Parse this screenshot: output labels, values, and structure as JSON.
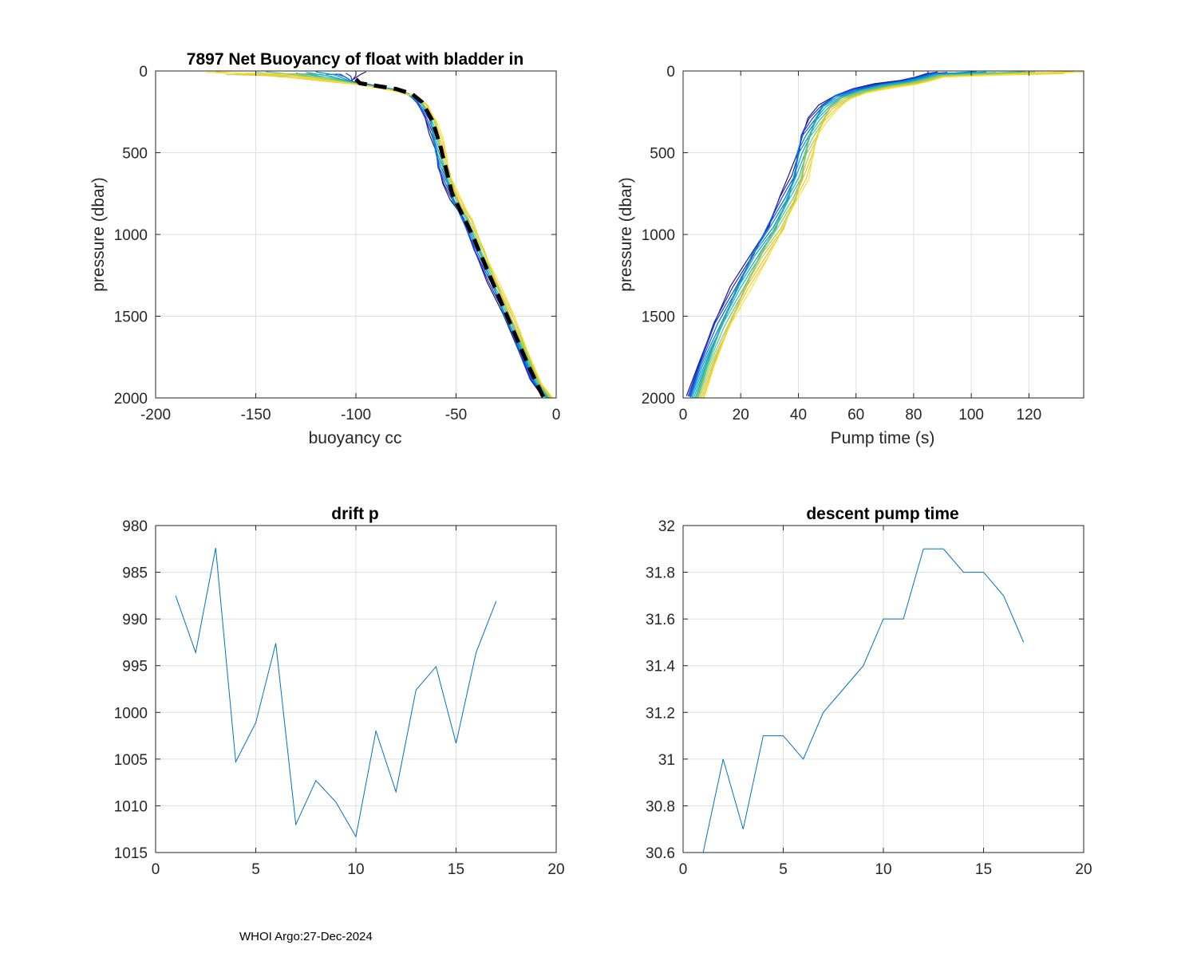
{
  "footer": "WHOI Argo:27-Dec-2024",
  "colors": {
    "axis": "#262626",
    "grid": "#dfdfdf",
    "series": "#0072bd",
    "model": "#000000"
  },
  "chart_data": [
    {
      "id": "buoyancy",
      "type": "line",
      "title": "7897 Net Buoyancy of float with bladder in",
      "xlabel": "buoyancy cc",
      "ylabel": "pressure (dbar)",
      "xlim": [
        -200,
        0
      ],
      "ylim": [
        0,
        2000
      ],
      "y_reversed": true,
      "xticks": [
        "-200",
        "-150",
        "-100",
        "-50",
        "0"
      ],
      "xtick_values": [
        -200,
        -150,
        -100,
        -50,
        0
      ],
      "yticks": [
        "0",
        "500",
        "1000",
        "1500",
        "2000"
      ],
      "ytick_values": [
        0,
        500,
        1000,
        1500,
        2000
      ],
      "series_base": {
        "x": [
          -100,
          -98,
          -90,
          -80,
          -72,
          -67,
          -62,
          -60,
          -58,
          -56,
          -53,
          -50,
          -45,
          -38,
          -31,
          -24,
          -17,
          -10,
          -4
        ],
        "y": [
          75,
          80,
          95,
          120,
          150,
          200,
          300,
          400,
          500,
          600,
          700,
          800,
          900,
          1100,
          1300,
          1500,
          1700,
          1900,
          2000
        ]
      },
      "series_count": 17,
      "surface_x_range": [
        -175,
        -95
      ],
      "model_line": {
        "name": "model",
        "x": [
          -100,
          -98,
          -90,
          -80,
          -72,
          -67,
          -62,
          -58,
          -55,
          -52,
          -48,
          -42,
          -35,
          -28,
          -21,
          -14,
          -7,
          -6
        ],
        "y": [
          50,
          75,
          90,
          110,
          140,
          190,
          300,
          450,
          600,
          750,
          850,
          1000,
          1200,
          1400,
          1600,
          1800,
          1980,
          2000
        ]
      }
    },
    {
      "id": "pumptime",
      "type": "line",
      "title": "",
      "xlabel": "Pump time (s)",
      "ylabel": "pressure (dbar)",
      "xlim": [
        0,
        139
      ],
      "ylim": [
        0,
        2000
      ],
      "y_reversed": true,
      "xticks": [
        "0",
        "20",
        "40",
        "60",
        "80",
        "100",
        "120"
      ],
      "xtick_values": [
        0,
        20,
        40,
        60,
        80,
        100,
        120
      ],
      "yticks": [
        "0",
        "500",
        "1000",
        "1500",
        "2000"
      ],
      "ytick_values": [
        0,
        500,
        1000,
        1500,
        2000
      ],
      "series_base": {
        "x": [
          4,
          8,
          14,
          20,
          26,
          32,
          37,
          40,
          42,
          44,
          47,
          50,
          55,
          62,
          70,
          78,
          83,
          88
        ],
        "y": [
          2000,
          1800,
          1550,
          1330,
          1130,
          960,
          780,
          650,
          500,
          400,
          300,
          220,
          160,
          120,
          90,
          70,
          50,
          25
        ]
      },
      "series_count": 17,
      "surface_x_range": [
        85,
        139
      ]
    },
    {
      "id": "drift",
      "type": "line",
      "title": "drift p",
      "xlabel": "",
      "ylabel": "",
      "xlim": [
        0,
        20
      ],
      "ylim": [
        980,
        1015
      ],
      "y_reversed": true,
      "xticks": [
        "0",
        "5",
        "10",
        "15",
        "20"
      ],
      "xtick_values": [
        0,
        5,
        10,
        15,
        20
      ],
      "yticks": [
        "980",
        "985",
        "990",
        "995",
        "1000",
        "1005",
        "1010",
        "1015"
      ],
      "ytick_values": [
        980,
        985,
        990,
        995,
        1000,
        1005,
        1010,
        1015
      ],
      "x": [
        1,
        2,
        3,
        4,
        5,
        6,
        7,
        8,
        9,
        10,
        11,
        12,
        13,
        14,
        15,
        16,
        17
      ],
      "values": [
        987.5,
        993.6,
        982.4,
        1005.3,
        1001.1,
        992.6,
        1012,
        1007.3,
        1009.6,
        1013.3,
        1002,
        1008.5,
        997.6,
        995.1,
        1003.3,
        993.6,
        988.1
      ]
    },
    {
      "id": "descent",
      "type": "line",
      "title": "descent pump time",
      "xlabel": "",
      "ylabel": "",
      "xlim": [
        0,
        20
      ],
      "ylim": [
        30.6,
        32
      ],
      "y_reversed": false,
      "xticks": [
        "0",
        "5",
        "10",
        "15",
        "20"
      ],
      "xtick_values": [
        0,
        5,
        10,
        15,
        20
      ],
      "yticks": [
        "30.6",
        "30.8",
        "31",
        "31.2",
        "31.4",
        "31.6",
        "31.8",
        "32"
      ],
      "ytick_values": [
        30.6,
        30.8,
        31,
        31.2,
        31.4,
        31.6,
        31.8,
        32
      ],
      "x": [
        1,
        2,
        3,
        4,
        5,
        6,
        7,
        8,
        9,
        10,
        11,
        12,
        13,
        14,
        15,
        16,
        17
      ],
      "values": [
        30.6,
        31.0,
        30.7,
        31.1,
        31.1,
        31.0,
        31.2,
        31.3,
        31.4,
        31.6,
        31.6,
        31.9,
        31.9,
        31.8,
        31.8,
        31.7,
        31.5
      ]
    }
  ]
}
